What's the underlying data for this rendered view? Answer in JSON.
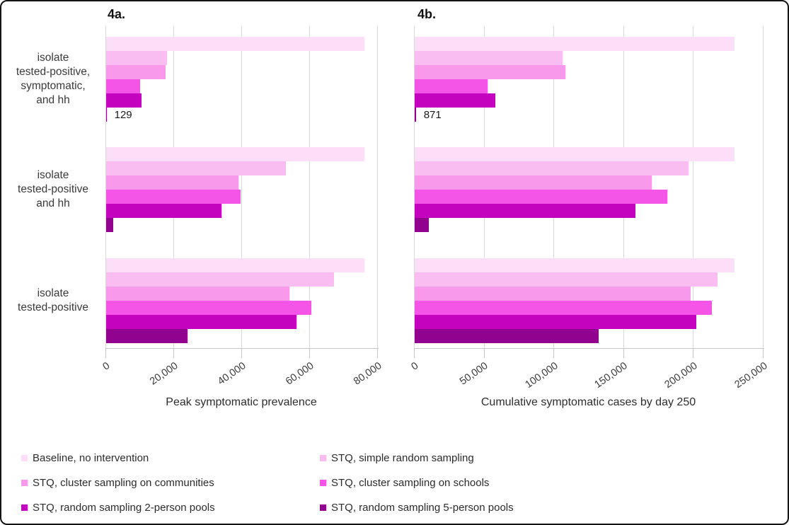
{
  "colors": {
    "gridline": "#d9d9d9",
    "axis_line": "#c6c6c6",
    "tick_text": "#3a3a3a",
    "figure_border": "#141414",
    "background": "#ffffff"
  },
  "chart_data": [
    {
      "id": "4a",
      "type": "bar",
      "orientation": "horizontal",
      "panel_label": "4a.",
      "xlabel": "Peak symptomatic prevalence",
      "xlim": [
        0,
        80000
      ],
      "xticks": [
        0,
        20000,
        40000,
        60000,
        80000
      ],
      "xtick_labels": [
        "0",
        "20,000",
        "40,000",
        "60,000",
        "80,000"
      ],
      "grid": true,
      "categories": [
        {
          "text": "isolate\ntested-positive,\nsymptomatic,\nand hh"
        },
        {
          "text": "isolate\ntested-positive\nand hh"
        },
        {
          "text": "isolate\ntested-positive"
        }
      ],
      "series": [
        {
          "name": "Baseline, no intervention",
          "color": "#fcdef8",
          "values": [
            76000,
            76000,
            76000
          ]
        },
        {
          "name": "STQ, simple random sampling",
          "color": "#fabdf1",
          "values": [
            18000,
            53000,
            67000
          ]
        },
        {
          "name": "STQ, cluster sampling on communities",
          "color": "#f999ec",
          "values": [
            17500,
            39000,
            54000
          ]
        },
        {
          "name": "STQ, cluster sampling on schools",
          "color": "#f455e7",
          "values": [
            10000,
            39500,
            60500
          ]
        },
        {
          "name": "STQ, random sampling 2-person pools",
          "color": "#c303be",
          "values": [
            10400,
            34000,
            56000
          ]
        },
        {
          "name": "STQ, random sampling 5-person pools",
          "color": "#91028f",
          "values": [
            129,
            2000,
            24000
          ]
        }
      ],
      "bar_value_labels": [
        {
          "group": 0,
          "series": 5,
          "text": "129"
        }
      ]
    },
    {
      "id": "4b",
      "type": "bar",
      "orientation": "horizontal",
      "panel_label": "4b.",
      "xlabel": "Cumulative symptomatic cases by day 250",
      "xlim": [
        0,
        250000
      ],
      "xticks": [
        0,
        50000,
        100000,
        150000,
        200000,
        250000
      ],
      "xtick_labels": [
        "0",
        "50,000",
        "100,000",
        "150,000",
        "200,000",
        "250,000"
      ],
      "grid": true,
      "categories": [
        {
          "text": "isolate\ntested-positive,\nsymptomatic,\nand hh"
        },
        {
          "text": "isolate\ntested-positive\nand hh"
        },
        {
          "text": "isolate\ntested-positive"
        }
      ],
      "series": [
        {
          "name": "Baseline, no intervention",
          "color": "#fcdef8",
          "values": [
            229000,
            229000,
            229000
          ]
        },
        {
          "name": "STQ, simple random sampling",
          "color": "#fabdf1",
          "values": [
            106000,
            196000,
            217000
          ]
        },
        {
          "name": "STQ, cluster sampling on communities",
          "color": "#f999ec",
          "values": [
            108000,
            170000,
            198000
          ]
        },
        {
          "name": "STQ, cluster sampling on schools",
          "color": "#f455e7",
          "values": [
            52000,
            181000,
            213000
          ]
        },
        {
          "name": "STQ, random sampling 2-person pools",
          "color": "#c303be",
          "values": [
            58000,
            158000,
            202000
          ]
        },
        {
          "name": "STQ, random sampling 5-person pools",
          "color": "#91028f",
          "values": [
            871,
            10000,
            132000
          ]
        }
      ],
      "bar_value_labels": [
        {
          "group": 0,
          "series": 5,
          "text": "871"
        }
      ]
    }
  ],
  "legend": {
    "position": "bottom",
    "columns": 2,
    "items": [
      {
        "label": "Baseline, no intervention",
        "color": "#fcdef8"
      },
      {
        "label": "STQ, simple random sampling",
        "color": "#fabdf1"
      },
      {
        "label": "STQ, cluster sampling on communities",
        "color": "#f999ec"
      },
      {
        "label": "STQ, cluster sampling on schools",
        "color": "#f455e7"
      },
      {
        "label": "STQ, random sampling 2-person pools",
        "color": "#c303be"
      },
      {
        "label": "STQ, random sampling 5-person pools",
        "color": "#91028f"
      }
    ]
  }
}
